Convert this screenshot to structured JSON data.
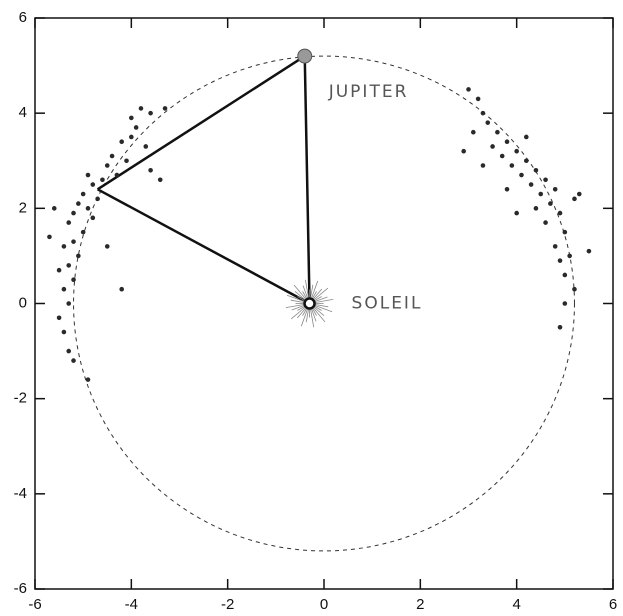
{
  "chart_data": {
    "type": "scatter",
    "xlim": [
      -6,
      6
    ],
    "ylim": [
      -6,
      6
    ],
    "xticks": [
      -6,
      -4,
      -2,
      0,
      2,
      4,
      6
    ],
    "yticks": [
      -6,
      -4,
      -2,
      0,
      2,
      4,
      6
    ],
    "series": [
      {
        "color": "#2a2a2a",
        "x": [
          -3.6,
          -3.8,
          -3.9,
          -4.0,
          -3.7,
          -4.2,
          -4.4,
          -4.1,
          -4.5,
          -4.3,
          -4.6,
          -4.8,
          -4.9,
          -5.0,
          -4.7,
          -5.1,
          -4.9,
          -5.2,
          -4.8,
          -5.3,
          -5.0,
          -5.2,
          -5.4,
          -5.1,
          -5.3,
          -5.5,
          -5.2,
          -5.4,
          -5.3,
          -5.5,
          -5.4,
          -5.3,
          -5.2,
          -4.9,
          -5.7,
          -3.4,
          -3.6,
          -4.2,
          -4.5,
          -5.6,
          -4.0,
          -3.3
        ],
        "values": [
          4.0,
          4.1,
          3.7,
          3.5,
          3.3,
          3.4,
          3.1,
          3.0,
          2.9,
          2.7,
          2.6,
          2.5,
          2.7,
          2.3,
          2.2,
          2.1,
          2.0,
          1.9,
          1.8,
          1.7,
          1.5,
          1.3,
          1.2,
          1.0,
          0.8,
          0.7,
          0.5,
          0.3,
          0.0,
          -0.3,
          -0.6,
          -1.0,
          -1.2,
          -1.6,
          1.4,
          2.6,
          2.8,
          0.3,
          1.2,
          2.0,
          3.9,
          4.1
        ]
      },
      {
        "color": "#2a2a2a",
        "x": [
          3.2,
          3.3,
          3.0,
          3.4,
          3.1,
          3.6,
          3.5,
          3.8,
          3.7,
          4.0,
          3.9,
          4.2,
          4.1,
          4.4,
          4.3,
          4.6,
          4.5,
          4.8,
          4.7,
          4.4,
          4.9,
          4.6,
          5.0,
          4.8,
          5.1,
          4.9,
          5.0,
          5.2,
          5.0,
          5.5,
          5.3,
          2.9,
          3.3,
          4.9,
          4.2,
          3.8,
          4.0,
          5.2
        ],
        "values": [
          4.3,
          4.0,
          4.5,
          3.8,
          3.6,
          3.6,
          3.3,
          3.4,
          3.1,
          3.2,
          2.9,
          3.0,
          2.7,
          2.8,
          2.5,
          2.6,
          2.3,
          2.4,
          2.1,
          2.0,
          1.9,
          1.7,
          1.5,
          1.2,
          1.0,
          0.9,
          0.6,
          0.3,
          0.0,
          1.1,
          2.3,
          3.2,
          2.9,
          -0.5,
          3.5,
          2.4,
          1.9,
          2.2
        ]
      }
    ],
    "orbit_radius": 5.2,
    "jupiter": {
      "label": "JUPITER",
      "x": -0.4,
      "y": 5.2
    },
    "sun": {
      "label": "SOLEIL",
      "x": -0.3,
      "y": 0
    },
    "vertex": {
      "x": -4.7,
      "y": 2.4
    }
  }
}
